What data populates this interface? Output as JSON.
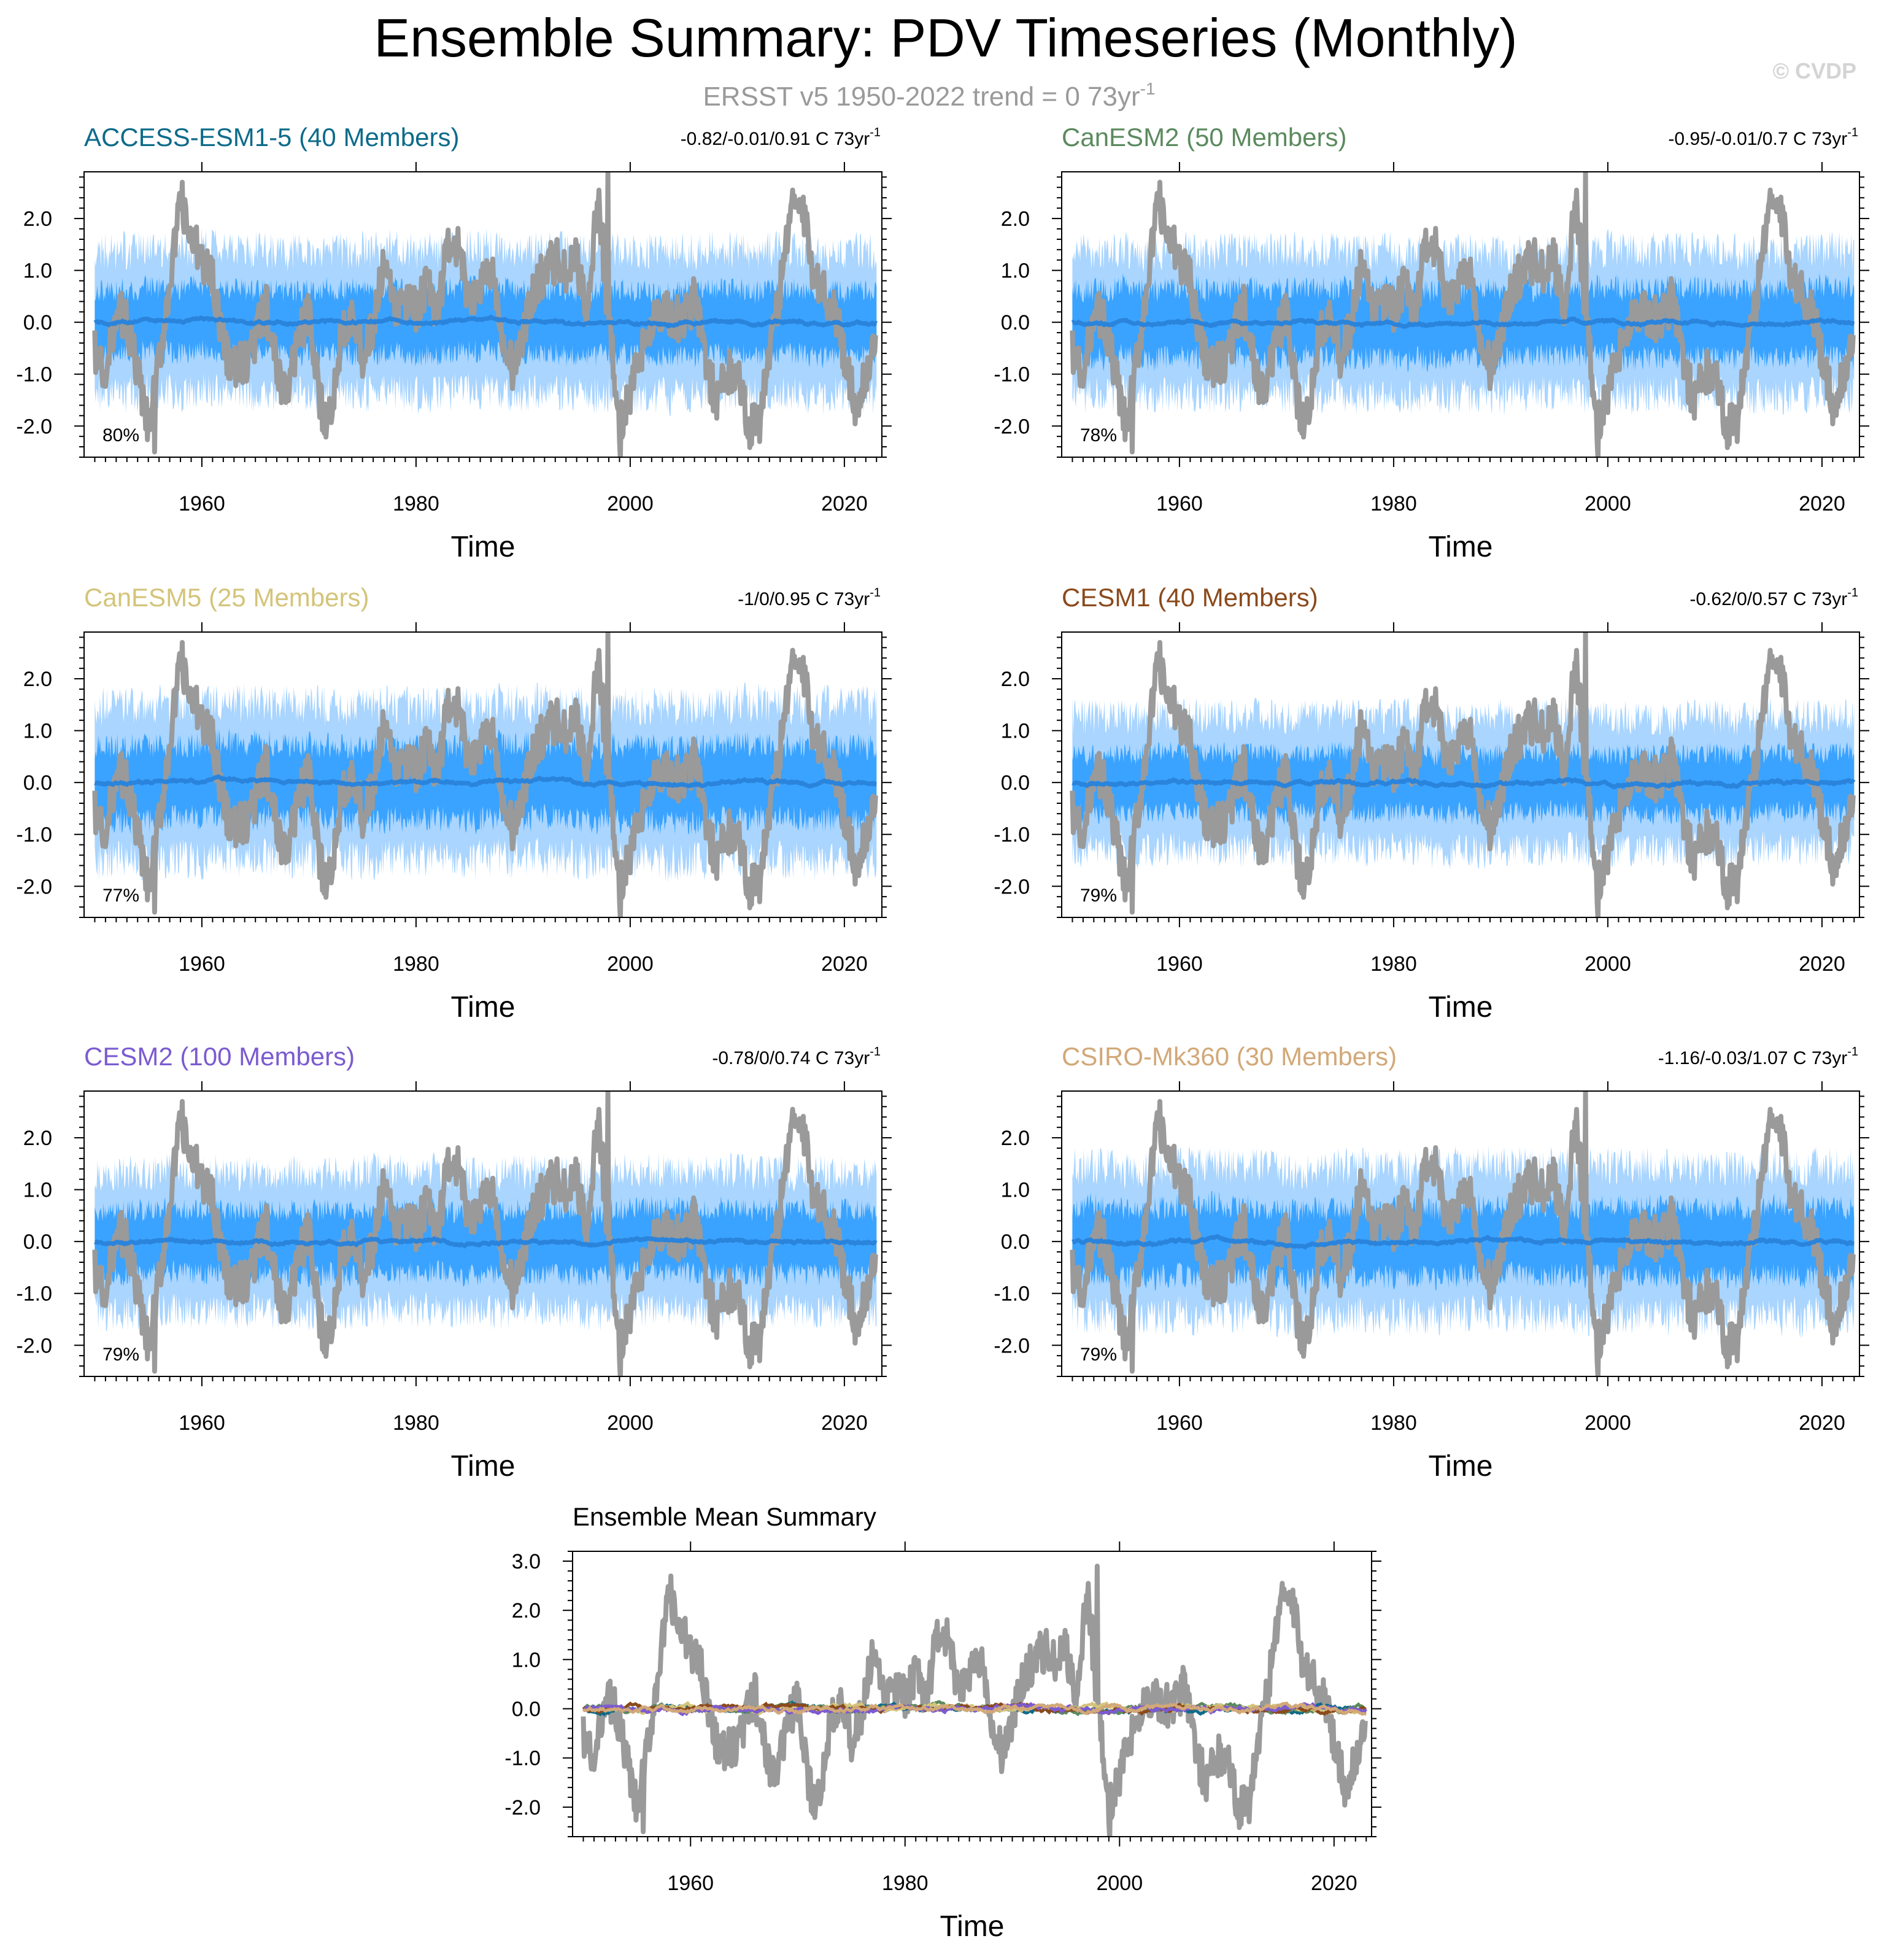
{
  "header": {
    "title": "Ensemble Summary: PDV Timeseries (Monthly)",
    "subtitle": "ERSST v5 1950-2022 trend = 0 73yr",
    "subtitle_sup": "-1",
    "copyright": "© CVDP"
  },
  "colors": {
    "obs": "#9a9a9a",
    "band_outer": "#a9d5ff",
    "band_inner": "#3aa3ff",
    "mean": "#2a84dc"
  },
  "chart_data": [
    {
      "type": "area",
      "title": "ACCESS-ESM1-5 (40 Members)",
      "title_color": "#0d6b8a",
      "stats": "-0.82/-0.01/0.91 C 73yr",
      "stats_sup": "-1",
      "percent": "80%",
      "xlabel": "Time",
      "xlim": [
        1949,
        2023.5
      ],
      "ylim": [
        -2.6,
        2.9
      ],
      "xticks": [
        1960,
        1980,
        2000,
        2020
      ],
      "xtick_labels": [
        "1960",
        "1980",
        "2000",
        "2020"
      ],
      "yticks": [
        2.0,
        1.0,
        0.0,
        -1.0,
        -2.0
      ],
      "ytick_labels": [
        "2.0",
        "1.0",
        "0.0",
        "-1.0",
        "-2.0"
      ],
      "band_outer": 1.35,
      "band_inner": 0.65,
      "seed": 11
    },
    {
      "type": "area",
      "title": "CanESM2 (50 Members)",
      "title_color": "#5b8a5e",
      "stats": "-0.95/-0.01/0.7 C 73yr",
      "stats_sup": "-1",
      "percent": "78%",
      "xlabel": "Time",
      "xlim": [
        1949,
        2023.5
      ],
      "ylim": [
        -2.6,
        2.9
      ],
      "xticks": [
        1960,
        1980,
        2000,
        2020
      ],
      "xtick_labels": [
        "1960",
        "1980",
        "2000",
        "2020"
      ],
      "yticks": [
        2.0,
        1.0,
        0.0,
        -1.0,
        -2.0
      ],
      "ytick_labels": [
        "2.0",
        "1.0",
        "0.0",
        "-1.0",
        "-2.0"
      ],
      "band_outer": 1.35,
      "band_inner": 0.7,
      "seed": 23
    },
    {
      "type": "area",
      "title": "CanESM5 (25 Members)",
      "title_color": "#d4c47a",
      "stats": "-1/0/0.95 C 73yr",
      "stats_sup": "-1",
      "percent": "77%",
      "xlabel": "Time",
      "xlim": [
        1949,
        2023.5
      ],
      "ylim": [
        -2.6,
        2.9
      ],
      "xticks": [
        1960,
        1980,
        2000,
        2020
      ],
      "xtick_labels": [
        "1960",
        "1980",
        "2000",
        "2020"
      ],
      "yticks": [
        2.0,
        1.0,
        0.0,
        -1.0,
        -2.0
      ],
      "ytick_labels": [
        "2.0",
        "1.0",
        "0.0",
        "-1.0",
        "-2.0"
      ],
      "band_outer": 1.45,
      "band_inner": 0.75,
      "seed": 37
    },
    {
      "type": "area",
      "title": "CESM1 (40 Members)",
      "title_color": "#8b4a1c",
      "stats": "-0.62/0/0.57 C 73yr",
      "stats_sup": "-1",
      "percent": "79%",
      "xlabel": "Time",
      "xlim": [
        1949,
        2023.5
      ],
      "ylim": [
        -2.6,
        2.9
      ],
      "xticks": [
        1960,
        1980,
        2000,
        2020
      ],
      "xtick_labels": [
        "1960",
        "1980",
        "2000",
        "2020"
      ],
      "yticks": [
        2.0,
        1.0,
        0.0,
        -1.0,
        -2.0
      ],
      "ytick_labels": [
        "2.0",
        "1.0",
        "0.0",
        "-1.0",
        "-2.0"
      ],
      "band_outer": 1.25,
      "band_inner": 0.6,
      "seed": 41
    },
    {
      "type": "area",
      "title": "CESM2 (100 Members)",
      "title_color": "#7b5bd0",
      "stats": "-0.78/0/0.74 C 73yr",
      "stats_sup": "-1",
      "percent": "79%",
      "xlabel": "Time",
      "xlim": [
        1949,
        2023.5
      ],
      "ylim": [
        -2.6,
        2.9
      ],
      "xticks": [
        1960,
        1980,
        2000,
        2020
      ],
      "xtick_labels": [
        "1960",
        "1980",
        "2000",
        "2020"
      ],
      "yticks": [
        2.0,
        1.0,
        0.0,
        -1.0,
        -2.0
      ],
      "ytick_labels": [
        "2.0",
        "1.0",
        "0.0",
        "-1.0",
        "-2.0"
      ],
      "band_outer": 1.3,
      "band_inner": 0.65,
      "seed": 53
    },
    {
      "type": "area",
      "title": "CSIRO-Mk360 (30 Members)",
      "title_color": "#d2a878",
      "stats": "-1.16/-0.03/1.07 C 73yr",
      "stats_sup": "-1",
      "percent": "79%",
      "xlabel": "Time",
      "xlim": [
        1949,
        2023.5
      ],
      "ylim": [
        -2.6,
        2.9
      ],
      "xticks": [
        1960,
        1980,
        2000,
        2020
      ],
      "xtick_labels": [
        "1960",
        "1980",
        "2000",
        "2020"
      ],
      "yticks": [
        2.0,
        1.0,
        0.0,
        -1.0,
        -2.0
      ],
      "ytick_labels": [
        "2.0",
        "1.0",
        "0.0",
        "-1.0",
        "-2.0"
      ],
      "band_outer": 1.4,
      "band_inner": 0.7,
      "seed": 67
    },
    {
      "type": "line",
      "title": "Ensemble Mean Summary",
      "title_color": "#000000",
      "xlabel": "Time",
      "xlim": [
        1949,
        2023.5
      ],
      "ylim": [
        -2.6,
        3.2
      ],
      "xticks": [
        1960,
        1980,
        2000,
        2020
      ],
      "xtick_labels": [
        "1960",
        "1980",
        "2000",
        "2020"
      ],
      "yticks": [
        3.0,
        2.0,
        1.0,
        0.0,
        -1.0,
        -2.0
      ],
      "ytick_labels": [
        "3.0",
        "2.0",
        "1.0",
        "0.0",
        "-1.0",
        "-2.0"
      ],
      "mean_colors": [
        "#0d6b8a",
        "#5b8a5e",
        "#d4c47a",
        "#8b4a1c",
        "#7b5bd0",
        "#d2a878"
      ]
    }
  ],
  "observed_anchor_values": {
    "years": [
      1950,
      1951,
      1952,
      1953,
      1954,
      1955,
      1956,
      1957,
      1958,
      1959,
      1960,
      1961,
      1962,
      1963,
      1964,
      1965,
      1966,
      1967,
      1968,
      1969,
      1970,
      1971,
      1972,
      1973,
      1974,
      1975,
      1976,
      1977,
      1978,
      1979,
      1980,
      1981,
      1982,
      1983,
      1984,
      1985,
      1986,
      1987,
      1988,
      1989,
      1990,
      1991,
      1992,
      1993,
      1994,
      1995,
      1996,
      1997,
      1998,
      1999,
      2000,
      2001,
      2002,
      2003,
      2004,
      2005,
      2006,
      2007,
      2008,
      2009,
      2010,
      2011,
      2012,
      2013,
      2014,
      2015,
      2016,
      2017,
      2018,
      2019,
      2020,
      2021,
      2022,
      2023
    ],
    "values": [
      -0.5,
      -1.2,
      0.3,
      0.0,
      -1.0,
      -2.1,
      -0.8,
      0.8,
      2.2,
      1.6,
      1.2,
      0.9,
      -0.4,
      -0.9,
      -0.8,
      -0.3,
      0.3,
      -0.9,
      -1.4,
      -0.2,
      0.1,
      -1.6,
      -1.9,
      -0.2,
      0.3,
      -0.7,
      -0.1,
      1.1,
      0.2,
      0.4,
      0.2,
      0.7,
      0.2,
      1.5,
      1.4,
      0.2,
      0.8,
      1.1,
      -0.4,
      -0.9,
      -0.3,
      0.6,
      1.0,
      1.2,
      0.9,
      1.2,
      0.2,
      2.5,
      0.0,
      -2.0,
      -1.4,
      -0.6,
      0.1,
      0.2,
      0.1,
      0.0,
      0.5,
      -0.6,
      -1.6,
      -1.0,
      -0.8,
      -2.0,
      -1.8,
      -0.6,
      0.6,
      2.3,
      2.2,
      1.1,
      0.6,
      0.3,
      -0.6,
      -1.6,
      -1.0,
      -0.5
    ]
  }
}
